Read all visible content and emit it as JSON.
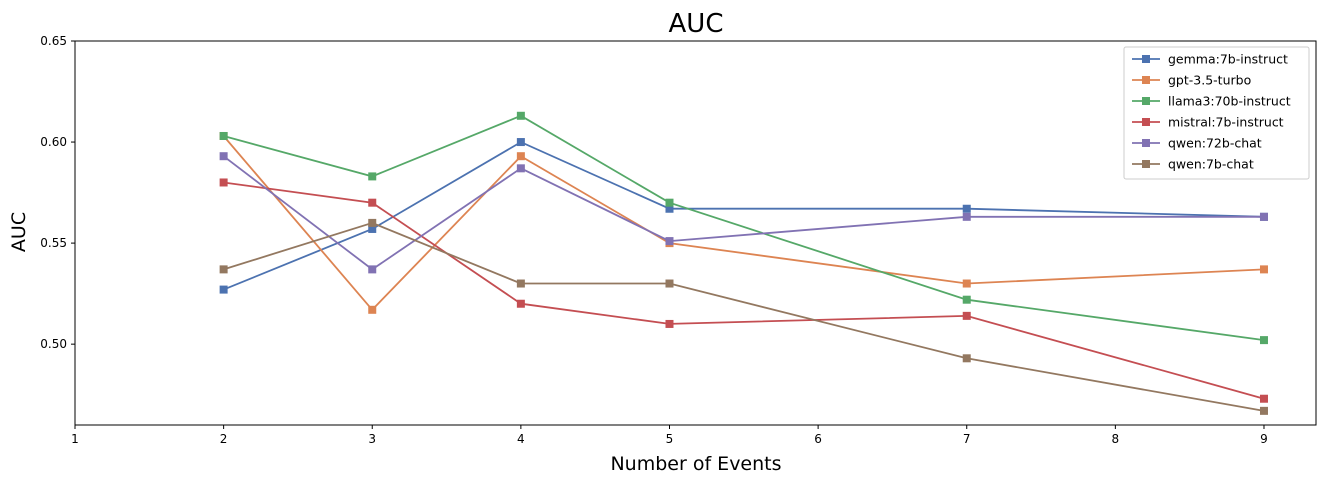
{
  "chart_data": {
    "type": "line",
    "title": "AUC",
    "xlabel": "Number of Events",
    "ylabel": "AUC",
    "xlim": [
      1,
      9.35
    ],
    "ylim": [
      0.46,
      0.65
    ],
    "xticks": [
      1,
      2,
      3,
      4,
      5,
      6,
      7,
      8,
      9
    ],
    "yticks": [
      0.5,
      0.55,
      0.6,
      0.65
    ],
    "ytick_labels": [
      "0.50",
      "0.55",
      "0.60",
      "0.65"
    ],
    "grid": false,
    "legend_position": "top-right",
    "x": [
      2,
      3,
      4,
      5,
      7,
      9
    ],
    "series": [
      {
        "name": "gemma:7b-instruct",
        "color": "#4c72b0",
        "values": [
          0.527,
          0.557,
          0.6,
          0.567,
          0.567,
          0.563
        ]
      },
      {
        "name": "gpt-3.5-turbo",
        "color": "#dd8452",
        "values": [
          0.603,
          0.517,
          0.593,
          0.55,
          0.53,
          0.537
        ]
      },
      {
        "name": "llama3:70b-instruct",
        "color": "#55a868",
        "values": [
          0.603,
          0.583,
          0.613,
          0.57,
          0.522,
          0.502
        ]
      },
      {
        "name": "mistral:7b-instruct",
        "color": "#c44e52",
        "values": [
          0.58,
          0.57,
          0.52,
          0.51,
          0.514,
          0.473
        ]
      },
      {
        "name": "qwen:72b-chat",
        "color": "#8172b3",
        "values": [
          0.593,
          0.537,
          0.587,
          0.551,
          0.563,
          0.563
        ]
      },
      {
        "name": "qwen:7b-chat",
        "color": "#937860",
        "values": [
          0.537,
          0.56,
          0.53,
          0.53,
          0.493,
          0.467
        ]
      }
    ]
  }
}
